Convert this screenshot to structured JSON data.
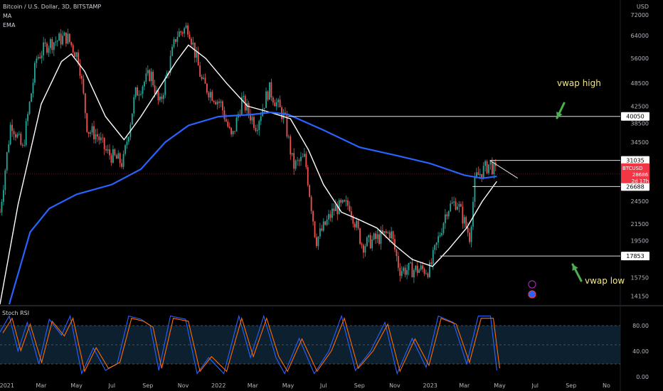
{
  "legend": {
    "symbol_line": "Bitcoin / U.S. Dollar, 3D, BITSTAMP",
    "ma_label": "MA",
    "ema_label": "EMA"
  },
  "currency": "USD",
  "price_axis_ticks": [
    "72000",
    "64000",
    "56000",
    "48500",
    "42500",
    "38500",
    "34500",
    "24500",
    "21500",
    "19500",
    "15750",
    "14150"
  ],
  "highlighted_levels": [
    {
      "label": "40050",
      "value": 40050
    },
    {
      "label": "31035",
      "value": 31035
    },
    {
      "label": "26688",
      "value": 26688
    },
    {
      "label": "17853",
      "value": 17853
    }
  ],
  "current_price": {
    "symbol": "BTCUSD",
    "price": "28686",
    "countdown": "2d 17h",
    "color": "#f23645"
  },
  "annotations": {
    "vwap_high": "vwap high",
    "vwap_low": "vwap low"
  },
  "oscillator": {
    "title": "Stoch RSI",
    "ticks": [
      "80.00",
      "40.00",
      "0.00"
    ]
  },
  "time_axis_ticks": [
    "2021",
    "Mar",
    "May",
    "Jul",
    "Sep",
    "Nov",
    "2022",
    "Mar",
    "May",
    "Jul",
    "Sep",
    "Nov",
    "2023",
    "Mar",
    "May",
    "Jul",
    "Sep",
    "No"
  ],
  "colors": {
    "background": "#000000",
    "up_candle": "#26a69a",
    "down_candle": "#ef5350",
    "ma_line": "#ffffff",
    "ema_line": "#2962ff",
    "annotation_text": "#f0e68c",
    "arrow": "#4caf50",
    "stoch_k": "#2962ff",
    "stoch_d": "#ff6d00"
  },
  "chart_data": {
    "type": "candlestick",
    "title": "Bitcoin / U.S. Dollar, 3D, BITSTAMP",
    "ylim": [
      13500,
      76000
    ],
    "y_scale": "log",
    "x_range": [
      "2020-12-20",
      "2023-11-25"
    ],
    "close_path": [
      [
        "2020-12-20",
        23000
      ],
      [
        "2021-01-08",
        39000
      ],
      [
        "2021-01-28",
        33000
      ],
      [
        "2021-02-21",
        56000
      ],
      [
        "2021-03-13",
        61000
      ],
      [
        "2021-04-14",
        63500
      ],
      [
        "2021-05-05",
        56000
      ],
      [
        "2021-05-20",
        37000
      ],
      [
        "2021-06-05",
        36000
      ],
      [
        "2021-06-22",
        32500
      ],
      [
        "2021-07-20",
        30500
      ],
      [
        "2021-08-10",
        45500
      ],
      [
        "2021-09-06",
        51500
      ],
      [
        "2021-09-21",
        42500
      ],
      [
        "2021-10-20",
        64000
      ],
      [
        "2021-11-10",
        67500
      ],
      [
        "2021-12-04",
        48500
      ],
      [
        "2022-01-05",
        43000
      ],
      [
        "2022-01-24",
        35000
      ],
      [
        "2022-02-10",
        44000
      ],
      [
        "2022-03-07",
        38000
      ],
      [
        "2022-03-29",
        47000
      ],
      [
        "2022-04-25",
        39500
      ],
      [
        "2022-05-10",
        30000
      ],
      [
        "2022-05-30",
        31500
      ],
      [
        "2022-06-18",
        19500
      ],
      [
        "2022-07-20",
        23500
      ],
      [
        "2022-08-15",
        24000
      ],
      [
        "2022-09-06",
        19000
      ],
      [
        "2022-10-25",
        20500
      ],
      [
        "2022-11-09",
        16500
      ],
      [
        "2022-12-31",
        16500
      ],
      [
        "2023-01-30",
        23500
      ],
      [
        "2023-02-16",
        24500
      ],
      [
        "2023-03-10",
        20000
      ],
      [
        "2023-03-20",
        28000
      ],
      [
        "2023-04-14",
        30500
      ],
      [
        "2023-04-26",
        28686
      ]
    ],
    "series": [
      {
        "name": "MA",
        "points": [
          [
            "2020-12-20",
            13500
          ],
          [
            "2021-01-20",
            24000
          ],
          [
            "2021-03-01",
            43000
          ],
          [
            "2021-04-05",
            55000
          ],
          [
            "2021-04-22",
            57500
          ],
          [
            "2021-05-15",
            52000
          ],
          [
            "2021-06-20",
            40000
          ],
          [
            "2021-07-22",
            35000
          ],
          [
            "2021-08-20",
            40000
          ],
          [
            "2021-09-20",
            47000
          ],
          [
            "2021-10-20",
            55000
          ],
          [
            "2021-11-10",
            60500
          ],
          [
            "2021-12-10",
            56000
          ],
          [
            "2022-01-15",
            48500
          ],
          [
            "2022-02-20",
            42500
          ],
          [
            "2022-03-31",
            41000
          ],
          [
            "2022-05-05",
            39500
          ],
          [
            "2022-06-05",
            33000
          ],
          [
            "2022-07-01",
            27000
          ],
          [
            "2022-08-01",
            23000
          ],
          [
            "2022-09-01",
            22000
          ],
          [
            "2022-10-01",
            21000
          ],
          [
            "2022-11-01",
            19000
          ],
          [
            "2022-12-01",
            17500
          ],
          [
            "2023-01-05",
            16800
          ],
          [
            "2023-02-01",
            18500
          ],
          [
            "2023-03-05",
            21000
          ],
          [
            "2023-04-01",
            24500
          ],
          [
            "2023-04-26",
            27500
          ]
        ]
      },
      {
        "name": "EMA",
        "points": [
          [
            "2021-01-05",
            13500
          ],
          [
            "2021-02-10",
            20500
          ],
          [
            "2021-03-15",
            23500
          ],
          [
            "2021-05-01",
            25500
          ],
          [
            "2021-07-01",
            27000
          ],
          [
            "2021-08-20",
            29500
          ],
          [
            "2021-10-01",
            34500
          ],
          [
            "2021-11-10",
            38000
          ],
          [
            "2022-01-01",
            40000
          ],
          [
            "2022-03-01",
            40500
          ],
          [
            "2022-04-01",
            41000
          ],
          [
            "2022-05-01",
            40500
          ],
          [
            "2022-07-01",
            37000
          ],
          [
            "2022-09-01",
            33500
          ],
          [
            "2022-11-01",
            32000
          ],
          [
            "2023-01-01",
            30500
          ],
          [
            "2023-03-01",
            28500
          ],
          [
            "2023-04-01",
            28000
          ],
          [
            "2023-04-26",
            28300
          ]
        ]
      }
    ],
    "levels": [
      40050,
      31035,
      26688,
      17853
    ],
    "trendline": {
      "from": [
        "2023-04-14",
        31035
      ],
      "to": [
        "2023-06-01",
        28000
      ]
    },
    "oscillator": {
      "name": "Stoch RSI",
      "ylim": [
        0,
        100
      ],
      "bands": [
        80,
        20
      ],
      "k_points": [
        [
          "2020-12-20",
          70
        ],
        [
          "2021-01-05",
          95
        ],
        [
          "2021-01-20",
          40
        ],
        [
          "2021-02-05",
          85
        ],
        [
          "2021-02-25",
          20
        ],
        [
          "2021-03-15",
          90
        ],
        [
          "2021-04-05",
          65
        ],
        [
          "2021-04-20",
          95
        ],
        [
          "2021-05-10",
          5
        ],
        [
          "2021-05-30",
          45
        ],
        [
          "2021-06-20",
          10
        ],
        [
          "2021-07-10",
          20
        ],
        [
          "2021-07-30",
          95
        ],
        [
          "2021-08-20",
          90
        ],
        [
          "2021-09-05",
          80
        ],
        [
          "2021-09-20",
          10
        ],
        [
          "2021-10-10",
          95
        ],
        [
          "2021-11-05",
          90
        ],
        [
          "2021-11-25",
          5
        ],
        [
          "2021-12-15",
          30
        ],
        [
          "2022-01-10",
          5
        ],
        [
          "2022-02-05",
          95
        ],
        [
          "2022-02-25",
          30
        ],
        [
          "2022-03-20",
          95
        ],
        [
          "2022-04-10",
          30
        ],
        [
          "2022-04-25",
          5
        ],
        [
          "2022-05-20",
          60
        ],
        [
          "2022-06-15",
          5
        ],
        [
          "2022-07-10",
          40
        ],
        [
          "2022-08-01",
          95
        ],
        [
          "2022-08-25",
          10
        ],
        [
          "2022-09-20",
          40
        ],
        [
          "2022-10-15",
          85
        ],
        [
          "2022-11-05",
          5
        ],
        [
          "2022-12-01",
          60
        ],
        [
          "2022-12-25",
          15
        ],
        [
          "2023-01-15",
          95
        ],
        [
          "2023-02-10",
          85
        ],
        [
          "2023-03-05",
          20
        ],
        [
          "2023-03-25",
          95
        ],
        [
          "2023-04-15",
          95
        ],
        [
          "2023-04-26",
          10
        ]
      ]
    },
    "time_ticks": [
      "2021",
      "Mar",
      "May",
      "Jul",
      "Sep",
      "Nov",
      "2022",
      "Mar",
      "May",
      "Jul",
      "Sep",
      "Nov",
      "2023",
      "Mar",
      "May",
      "Jul",
      "Sep",
      "No"
    ],
    "price_ticks": [
      72000,
      64000,
      56000,
      48500,
      42500,
      38500,
      34500,
      24500,
      21500,
      19500,
      15750,
      14150
    ]
  }
}
